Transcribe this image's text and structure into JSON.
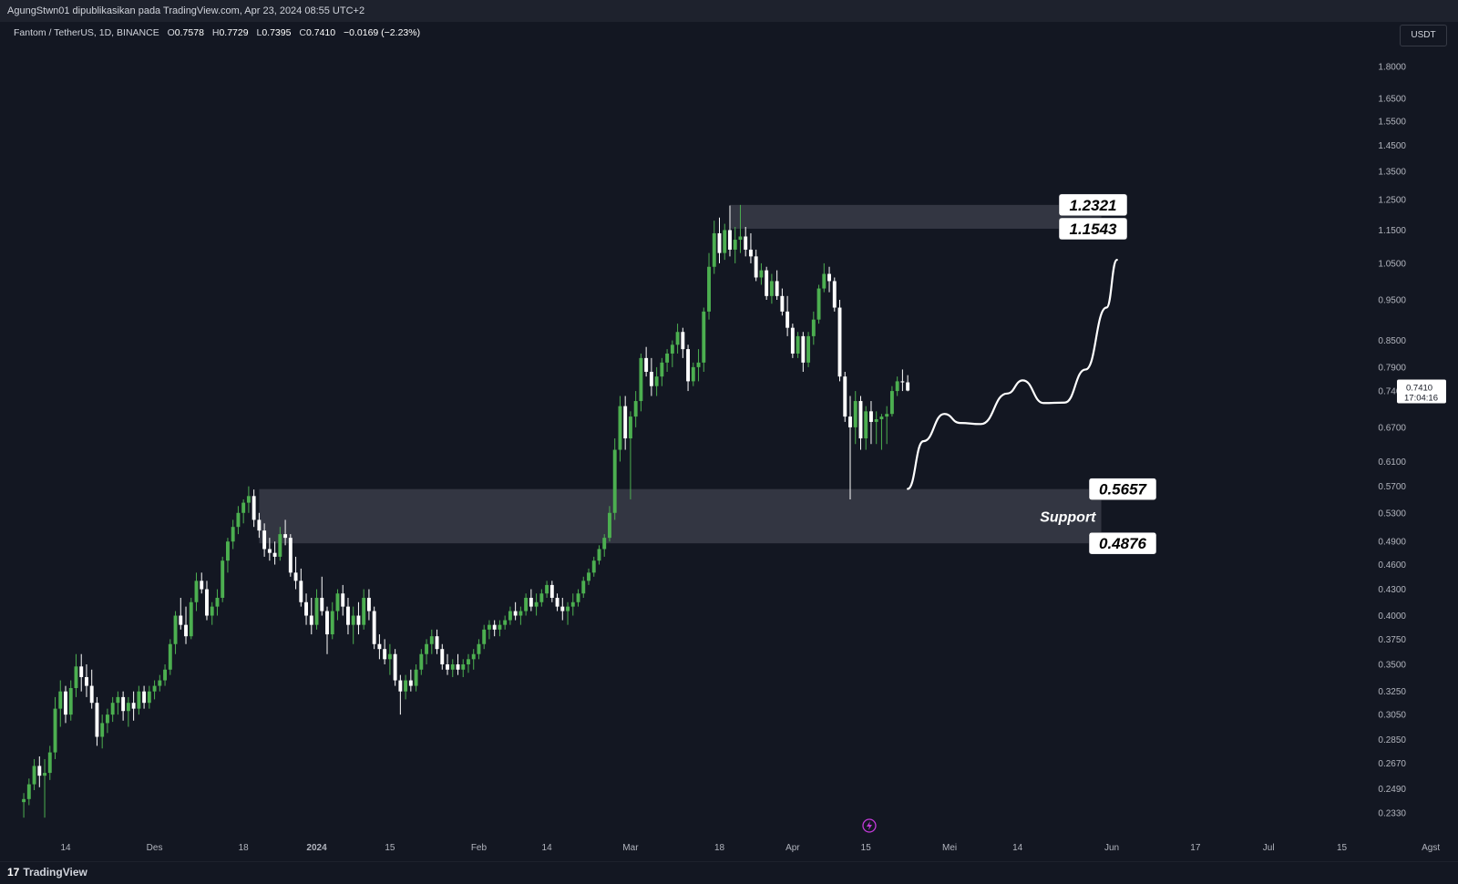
{
  "header": {
    "publisher_line": "AgungStwn01 dipublikasikan pada TradingView.com, Apr 23, 2024 08:55 UTC+2"
  },
  "legend": {
    "symbol": "Fantom / TetherUS, 1D, BINANCE",
    "open_label": "O",
    "open_value": "0.7578",
    "high_label": "H",
    "high_value": "0.7729",
    "low_label": "L",
    "low_value": "0.7395",
    "close_label": "C",
    "close_value": "0.7410",
    "change": "−0.0169 (−2.23%)"
  },
  "currency": "USDT",
  "footer": {
    "brand": "TradingView",
    "brand_mark": "17"
  },
  "colors": {
    "background": "#131722",
    "up": "#4caf50",
    "down": "#ffffff",
    "zone": "#363a45",
    "text": "#b2b5be"
  },
  "chart_data": {
    "type": "candlestick",
    "symbol": "FTM/USDT",
    "timeframe": "1D",
    "scale": "log",
    "y_ticks": [
      "1.8000",
      "1.6500",
      "1.5500",
      "1.4500",
      "1.3500",
      "1.2500",
      "1.1500",
      "1.0500",
      "0.9500",
      "0.8500",
      "0.7900",
      "0.7400",
      "0.6700",
      "0.6100",
      "0.5700",
      "0.5300",
      "0.4900",
      "0.4600",
      "0.4300",
      "0.4000",
      "0.3750",
      "0.3500",
      "0.3250",
      "0.3050",
      "0.2850",
      "0.2670",
      "0.2490",
      "0.2330"
    ],
    "x_ticks": [
      {
        "label": "14",
        "date": "2023-11-14"
      },
      {
        "label": "Des",
        "date": "2023-12-01"
      },
      {
        "label": "18",
        "date": "2023-12-18"
      },
      {
        "label": "2024",
        "date": "2024-01-01"
      },
      {
        "label": "15",
        "date": "2024-01-15"
      },
      {
        "label": "Feb",
        "date": "2024-02-01"
      },
      {
        "label": "14",
        "date": "2024-02-14"
      },
      {
        "label": "Mar",
        "date": "2024-03-01"
      },
      {
        "label": "18",
        "date": "2024-03-18"
      },
      {
        "label": "Apr",
        "date": "2024-04-01"
      },
      {
        "label": "15",
        "date": "2024-04-15"
      },
      {
        "label": "Mei",
        "date": "2024-05-01"
      },
      {
        "label": "14",
        "date": "2024-05-14"
      },
      {
        "label": "Jun",
        "date": "2024-06-01"
      },
      {
        "label": "17",
        "date": "2024-06-17"
      },
      {
        "label": "Jul",
        "date": "2024-07-01"
      },
      {
        "label": "15",
        "date": "2024-07-15"
      },
      {
        "label": "Agst",
        "date": "2024-08-01"
      }
    ],
    "last_price": "0.7410",
    "countdown": "17:04:16",
    "zones": [
      {
        "name": "resistance",
        "top": 1.2321,
        "bottom": 1.1543,
        "start": "2024-03-20",
        "end": "2024-05-30",
        "top_label": "1.2321",
        "bottom_label": "1.1543"
      },
      {
        "name": "support",
        "top": 0.5657,
        "bottom": 0.4876,
        "start": "2023-12-21",
        "end": "2024-05-30",
        "top_label": "0.5657",
        "bottom_label": "0.4876",
        "text": "Support"
      }
    ],
    "projection": [
      [
        "2024-04-23",
        0.566
      ],
      [
        "2024-04-26",
        0.645
      ],
      [
        "2024-04-30",
        0.695
      ],
      [
        "2024-05-03",
        0.678
      ],
      [
        "2024-05-07",
        0.676
      ],
      [
        "2024-05-12",
        0.735
      ],
      [
        "2024-05-15",
        0.762
      ],
      [
        "2024-05-19",
        0.716
      ],
      [
        "2024-05-23",
        0.717
      ],
      [
        "2024-05-27",
        0.785
      ],
      [
        "2024-05-31",
        0.93
      ],
      [
        "2024-06-02",
        1.06
      ]
    ],
    "candles": [
      [
        "2023-11-06",
        0.24,
        0.246,
        0.23,
        0.242
      ],
      [
        "2023-11-07",
        0.242,
        0.256,
        0.238,
        0.252
      ],
      [
        "2023-11-08",
        0.252,
        0.27,
        0.248,
        0.265
      ],
      [
        "2023-11-09",
        0.265,
        0.272,
        0.25,
        0.258
      ],
      [
        "2023-11-10",
        0.258,
        0.27,
        0.23,
        0.26
      ],
      [
        "2023-11-11",
        0.26,
        0.28,
        0.255,
        0.275
      ],
      [
        "2023-11-12",
        0.275,
        0.32,
        0.27,
        0.31
      ],
      [
        "2023-11-13",
        0.31,
        0.335,
        0.295,
        0.325
      ],
      [
        "2023-11-14",
        0.325,
        0.33,
        0.298,
        0.305
      ],
      [
        "2023-11-15",
        0.305,
        0.335,
        0.3,
        0.328
      ],
      [
        "2023-11-16",
        0.328,
        0.36,
        0.32,
        0.348
      ],
      [
        "2023-11-17",
        0.348,
        0.36,
        0.325,
        0.338
      ],
      [
        "2023-11-18",
        0.338,
        0.35,
        0.32,
        0.33
      ],
      [
        "2023-11-19",
        0.33,
        0.345,
        0.31,
        0.315
      ],
      [
        "2023-11-20",
        0.315,
        0.32,
        0.28,
        0.287
      ],
      [
        "2023-11-21",
        0.287,
        0.305,
        0.278,
        0.298
      ],
      [
        "2023-11-22",
        0.298,
        0.31,
        0.29,
        0.305
      ],
      [
        "2023-11-23",
        0.305,
        0.32,
        0.299,
        0.315
      ],
      [
        "2023-11-24",
        0.315,
        0.325,
        0.305,
        0.32
      ],
      [
        "2023-11-25",
        0.32,
        0.325,
        0.3,
        0.308
      ],
      [
        "2023-11-26",
        0.308,
        0.32,
        0.295,
        0.315
      ],
      [
        "2023-11-27",
        0.315,
        0.325,
        0.3,
        0.31
      ],
      [
        "2023-11-28",
        0.31,
        0.33,
        0.305,
        0.325
      ],
      [
        "2023-11-29",
        0.325,
        0.33,
        0.31,
        0.315
      ],
      [
        "2023-11-30",
        0.315,
        0.33,
        0.31,
        0.325
      ],
      [
        "2023-12-01",
        0.325,
        0.335,
        0.318,
        0.33
      ],
      [
        "2023-12-02",
        0.33,
        0.34,
        0.325,
        0.335
      ],
      [
        "2023-12-03",
        0.335,
        0.35,
        0.33,
        0.345
      ],
      [
        "2023-12-04",
        0.345,
        0.375,
        0.34,
        0.37
      ],
      [
        "2023-12-05",
        0.37,
        0.405,
        0.36,
        0.4
      ],
      [
        "2023-12-06",
        0.4,
        0.42,
        0.385,
        0.39
      ],
      [
        "2023-12-07",
        0.39,
        0.41,
        0.37,
        0.378
      ],
      [
        "2023-12-08",
        0.378,
        0.42,
        0.375,
        0.415
      ],
      [
        "2023-12-09",
        0.415,
        0.45,
        0.405,
        0.44
      ],
      [
        "2023-12-10",
        0.44,
        0.45,
        0.425,
        0.43
      ],
      [
        "2023-12-11",
        0.43,
        0.44,
        0.395,
        0.4
      ],
      [
        "2023-12-12",
        0.4,
        0.415,
        0.39,
        0.41
      ],
      [
        "2023-12-13",
        0.41,
        0.43,
        0.4,
        0.42
      ],
      [
        "2023-12-14",
        0.42,
        0.47,
        0.415,
        0.465
      ],
      [
        "2023-12-15",
        0.465,
        0.495,
        0.45,
        0.49
      ],
      [
        "2023-12-16",
        0.49,
        0.52,
        0.48,
        0.51
      ],
      [
        "2023-12-17",
        0.51,
        0.54,
        0.5,
        0.53
      ],
      [
        "2023-12-18",
        0.53,
        0.55,
        0.515,
        0.545
      ],
      [
        "2023-12-19",
        0.545,
        0.57,
        0.53,
        0.555
      ],
      [
        "2023-12-20",
        0.555,
        0.565,
        0.51,
        0.52
      ],
      [
        "2023-12-21",
        0.52,
        0.53,
        0.495,
        0.505
      ],
      [
        "2023-12-22",
        0.505,
        0.515,
        0.47,
        0.48
      ],
      [
        "2023-12-23",
        0.48,
        0.495,
        0.465,
        0.475
      ],
      [
        "2023-12-24",
        0.475,
        0.49,
        0.46,
        0.47
      ],
      [
        "2023-12-25",
        0.47,
        0.51,
        0.465,
        0.5
      ],
      [
        "2023-12-26",
        0.5,
        0.52,
        0.485,
        0.495
      ],
      [
        "2023-12-27",
        0.495,
        0.5,
        0.445,
        0.45
      ],
      [
        "2023-12-28",
        0.45,
        0.47,
        0.43,
        0.44
      ],
      [
        "2023-12-29",
        0.44,
        0.455,
        0.41,
        0.415
      ],
      [
        "2023-12-30",
        0.415,
        0.425,
        0.39,
        0.4
      ],
      [
        "2023-12-31",
        0.4,
        0.42,
        0.38,
        0.39
      ],
      [
        "2024-01-01",
        0.39,
        0.43,
        0.385,
        0.42
      ],
      [
        "2024-01-02",
        0.42,
        0.445,
        0.4,
        0.405
      ],
      [
        "2024-01-03",
        0.405,
        0.41,
        0.36,
        0.38
      ],
      [
        "2024-01-04",
        0.38,
        0.415,
        0.375,
        0.405
      ],
      [
        "2024-01-05",
        0.405,
        0.43,
        0.395,
        0.425
      ],
      [
        "2024-01-06",
        0.425,
        0.435,
        0.4,
        0.41
      ],
      [
        "2024-01-07",
        0.41,
        0.42,
        0.38,
        0.39
      ],
      [
        "2024-01-08",
        0.39,
        0.41,
        0.37,
        0.4
      ],
      [
        "2024-01-09",
        0.4,
        0.415,
        0.38,
        0.39
      ],
      [
        "2024-01-10",
        0.39,
        0.43,
        0.385,
        0.42
      ],
      [
        "2024-01-11",
        0.42,
        0.43,
        0.395,
        0.405
      ],
      [
        "2024-01-12",
        0.405,
        0.41,
        0.365,
        0.37
      ],
      [
        "2024-01-13",
        0.37,
        0.38,
        0.355,
        0.365
      ],
      [
        "2024-01-14",
        0.365,
        0.375,
        0.35,
        0.355
      ],
      [
        "2024-01-15",
        0.355,
        0.37,
        0.34,
        0.36
      ],
      [
        "2024-01-16",
        0.36,
        0.365,
        0.33,
        0.335
      ],
      [
        "2024-01-17",
        0.335,
        0.34,
        0.305,
        0.325
      ],
      [
        "2024-01-18",
        0.325,
        0.34,
        0.318,
        0.335
      ],
      [
        "2024-01-19",
        0.335,
        0.345,
        0.325,
        0.33
      ],
      [
        "2024-01-20",
        0.33,
        0.35,
        0.325,
        0.345
      ],
      [
        "2024-01-21",
        0.345,
        0.365,
        0.34,
        0.36
      ],
      [
        "2024-01-22",
        0.36,
        0.375,
        0.35,
        0.37
      ],
      [
        "2024-01-23",
        0.37,
        0.385,
        0.36,
        0.378
      ],
      [
        "2024-01-24",
        0.378,
        0.385,
        0.36,
        0.365
      ],
      [
        "2024-01-25",
        0.365,
        0.37,
        0.345,
        0.35
      ],
      [
        "2024-01-26",
        0.35,
        0.36,
        0.34,
        0.345
      ],
      [
        "2024-01-27",
        0.345,
        0.355,
        0.338,
        0.35
      ],
      [
        "2024-01-28",
        0.35,
        0.36,
        0.34,
        0.345
      ],
      [
        "2024-01-29",
        0.345,
        0.355,
        0.338,
        0.35
      ],
      [
        "2024-01-30",
        0.35,
        0.36,
        0.342,
        0.355
      ],
      [
        "2024-01-31",
        0.355,
        0.365,
        0.345,
        0.36
      ],
      [
        "2024-02-01",
        0.36,
        0.375,
        0.355,
        0.37
      ],
      [
        "2024-02-02",
        0.37,
        0.39,
        0.365,
        0.385
      ],
      [
        "2024-02-03",
        0.385,
        0.395,
        0.375,
        0.39
      ],
      [
        "2024-02-04",
        0.39,
        0.395,
        0.378,
        0.385
      ],
      [
        "2024-02-05",
        0.385,
        0.395,
        0.378,
        0.39
      ],
      [
        "2024-02-06",
        0.39,
        0.4,
        0.385,
        0.395
      ],
      [
        "2024-02-07",
        0.395,
        0.41,
        0.39,
        0.405
      ],
      [
        "2024-02-08",
        0.405,
        0.415,
        0.395,
        0.4
      ],
      [
        "2024-02-09",
        0.4,
        0.41,
        0.39,
        0.405
      ],
      [
        "2024-02-10",
        0.405,
        0.425,
        0.4,
        0.42
      ],
      [
        "2024-02-11",
        0.42,
        0.43,
        0.405,
        0.41
      ],
      [
        "2024-02-12",
        0.41,
        0.425,
        0.4,
        0.415
      ],
      [
        "2024-02-13",
        0.415,
        0.43,
        0.41,
        0.425
      ],
      [
        "2024-02-14",
        0.425,
        0.44,
        0.42,
        0.435
      ],
      [
        "2024-02-15",
        0.435,
        0.44,
        0.415,
        0.42
      ],
      [
        "2024-02-16",
        0.42,
        0.425,
        0.405,
        0.41
      ],
      [
        "2024-02-17",
        0.41,
        0.42,
        0.395,
        0.405
      ],
      [
        "2024-02-18",
        0.405,
        0.415,
        0.39,
        0.41
      ],
      [
        "2024-02-19",
        0.41,
        0.425,
        0.4,
        0.415
      ],
      [
        "2024-02-20",
        0.415,
        0.43,
        0.41,
        0.425
      ],
      [
        "2024-02-21",
        0.425,
        0.445,
        0.42,
        0.44
      ],
      [
        "2024-02-22",
        0.44,
        0.455,
        0.435,
        0.45
      ],
      [
        "2024-02-23",
        0.45,
        0.47,
        0.445,
        0.465
      ],
      [
        "2024-02-24",
        0.465,
        0.485,
        0.46,
        0.48
      ],
      [
        "2024-02-25",
        0.48,
        0.5,
        0.47,
        0.495
      ],
      [
        "2024-02-26",
        0.495,
        0.54,
        0.49,
        0.53
      ],
      [
        "2024-02-27",
        0.53,
        0.65,
        0.52,
        0.63
      ],
      [
        "2024-02-28",
        0.63,
        0.73,
        0.61,
        0.71
      ],
      [
        "2024-02-29",
        0.71,
        0.73,
        0.63,
        0.65
      ],
      [
        "2024-03-01",
        0.65,
        0.7,
        0.55,
        0.69
      ],
      [
        "2024-03-02",
        0.69,
        0.74,
        0.67,
        0.72
      ],
      [
        "2024-03-03",
        0.72,
        0.82,
        0.7,
        0.81
      ],
      [
        "2024-03-04",
        0.81,
        0.835,
        0.77,
        0.78
      ],
      [
        "2024-03-05",
        0.78,
        0.81,
        0.73,
        0.75
      ],
      [
        "2024-03-06",
        0.75,
        0.79,
        0.73,
        0.77
      ],
      [
        "2024-03-07",
        0.77,
        0.81,
        0.75,
        0.8
      ],
      [
        "2024-03-08",
        0.8,
        0.83,
        0.78,
        0.82
      ],
      [
        "2024-03-09",
        0.82,
        0.85,
        0.79,
        0.84
      ],
      [
        "2024-03-10",
        0.84,
        0.89,
        0.82,
        0.87
      ],
      [
        "2024-03-11",
        0.87,
        0.88,
        0.81,
        0.83
      ],
      [
        "2024-03-12",
        0.83,
        0.84,
        0.74,
        0.76
      ],
      [
        "2024-03-13",
        0.76,
        0.8,
        0.75,
        0.79
      ],
      [
        "2024-03-14",
        0.79,
        0.83,
        0.76,
        0.8
      ],
      [
        "2024-03-15",
        0.8,
        0.93,
        0.78,
        0.92
      ],
      [
        "2024-03-16",
        0.92,
        1.08,
        0.9,
        1.04
      ],
      [
        "2024-03-17",
        1.04,
        1.18,
        1.02,
        1.14
      ],
      [
        "2024-03-18",
        1.14,
        1.19,
        1.05,
        1.08
      ],
      [
        "2024-03-19",
        1.08,
        1.17,
        1.06,
        1.15
      ],
      [
        "2024-03-20",
        1.15,
        1.23,
        1.07,
        1.09
      ],
      [
        "2024-03-21",
        1.09,
        1.16,
        1.05,
        1.12
      ],
      [
        "2024-03-22",
        1.12,
        1.2321,
        1.08,
        1.13
      ],
      [
        "2024-03-23",
        1.13,
        1.16,
        1.07,
        1.09
      ],
      [
        "2024-03-24",
        1.09,
        1.14,
        1.05,
        1.07
      ],
      [
        "2024-03-25",
        1.07,
        1.09,
        1.0,
        1.01
      ],
      [
        "2024-03-26",
        1.01,
        1.05,
        0.99,
        1.03
      ],
      [
        "2024-03-27",
        1.03,
        1.04,
        0.95,
        0.96
      ],
      [
        "2024-03-28",
        0.96,
        1.02,
        0.94,
        1.0
      ],
      [
        "2024-03-29",
        1.0,
        1.03,
        0.95,
        0.96
      ],
      [
        "2024-03-30",
        0.96,
        0.98,
        0.91,
        0.92
      ],
      [
        "2024-03-31",
        0.92,
        0.96,
        0.86,
        0.88
      ],
      [
        "2024-04-01",
        0.88,
        0.89,
        0.81,
        0.82
      ],
      [
        "2024-04-02",
        0.82,
        0.87,
        0.81,
        0.86
      ],
      [
        "2024-04-03",
        0.86,
        0.87,
        0.78,
        0.8
      ],
      [
        "2024-04-04",
        0.8,
        0.87,
        0.79,
        0.86
      ],
      [
        "2024-04-05",
        0.86,
        0.92,
        0.84,
        0.9
      ],
      [
        "2024-04-06",
        0.9,
        0.99,
        0.89,
        0.98
      ],
      [
        "2024-04-07",
        0.98,
        1.05,
        0.97,
        1.02
      ],
      [
        "2024-04-08",
        1.02,
        1.04,
        0.97,
        1.0
      ],
      [
        "2024-04-09",
        1.0,
        1.01,
        0.92,
        0.93
      ],
      [
        "2024-04-10",
        0.93,
        0.95,
        0.76,
        0.77
      ],
      [
        "2024-04-11",
        0.77,
        0.78,
        0.68,
        0.69
      ],
      [
        "2024-04-12",
        0.69,
        0.73,
        0.55,
        0.67
      ],
      [
        "2024-04-13",
        0.67,
        0.74,
        0.64,
        0.72
      ],
      [
        "2024-04-14",
        0.72,
        0.73,
        0.63,
        0.65
      ],
      [
        "2024-04-15",
        0.65,
        0.71,
        0.63,
        0.7
      ],
      [
        "2024-04-16",
        0.7,
        0.72,
        0.64,
        0.68
      ],
      [
        "2024-04-17",
        0.68,
        0.7,
        0.64,
        0.685
      ],
      [
        "2024-04-18",
        0.685,
        0.695,
        0.63,
        0.69
      ],
      [
        "2024-04-19",
        0.69,
        0.71,
        0.64,
        0.695
      ],
      [
        "2024-04-20",
        0.695,
        0.75,
        0.69,
        0.74
      ],
      [
        "2024-04-21",
        0.74,
        0.77,
        0.73,
        0.76
      ],
      [
        "2024-04-22",
        0.76,
        0.785,
        0.74,
        0.7578
      ],
      [
        "2024-04-23",
        0.7578,
        0.7729,
        0.7395,
        0.741
      ]
    ]
  }
}
